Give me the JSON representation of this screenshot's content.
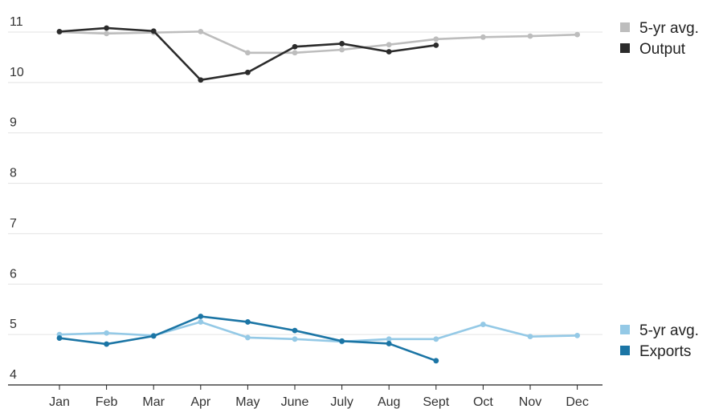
{
  "chart_data": {
    "type": "line",
    "title": "",
    "xlabel": "",
    "ylabel": "",
    "categories": [
      "Jan",
      "Feb",
      "Mar",
      "Apr",
      "May",
      "June",
      "July",
      "Aug",
      "Sept",
      "Oct",
      "Nov",
      "Dec"
    ],
    "ylim": [
      4,
      11.2
    ],
    "yticks": [
      4,
      5,
      6,
      7,
      8,
      9,
      10,
      11
    ],
    "grid": true,
    "series": [
      {
        "name": "5-yr avg.",
        "color": "#bdbdbd",
        "values": [
          11.0,
          10.97,
          10.99,
          11.01,
          10.59,
          10.59,
          10.65,
          10.75,
          10.86,
          10.9,
          10.92,
          10.95
        ]
      },
      {
        "name": "Output",
        "color": "#2b2b2b",
        "values": [
          11.01,
          11.08,
          11.02,
          10.05,
          10.2,
          10.71,
          10.77,
          10.61,
          10.74,
          null,
          null,
          null
        ]
      },
      {
        "name": "5-yr avg.",
        "color": "#94c9e6",
        "values": [
          5.0,
          5.03,
          4.98,
          5.25,
          4.94,
          4.91,
          4.86,
          4.91,
          4.91,
          5.2,
          4.96,
          4.98
        ]
      },
      {
        "name": "Exports",
        "color": "#1b75a5",
        "values": [
          4.93,
          4.81,
          4.97,
          5.36,
          5.25,
          5.08,
          4.87,
          4.82,
          4.48,
          null,
          null,
          null
        ]
      }
    ],
    "legends": [
      {
        "items": [
          {
            "label": "5-yr avg.",
            "color": "#bdbdbd"
          },
          {
            "label": "Output",
            "color": "#2b2b2b"
          }
        ],
        "placement": "top-right"
      },
      {
        "items": [
          {
            "label": "5-yr avg.",
            "color": "#94c9e6"
          },
          {
            "label": "Exports",
            "color": "#1b75a5"
          }
        ],
        "placement": "bottom-right"
      }
    ]
  }
}
